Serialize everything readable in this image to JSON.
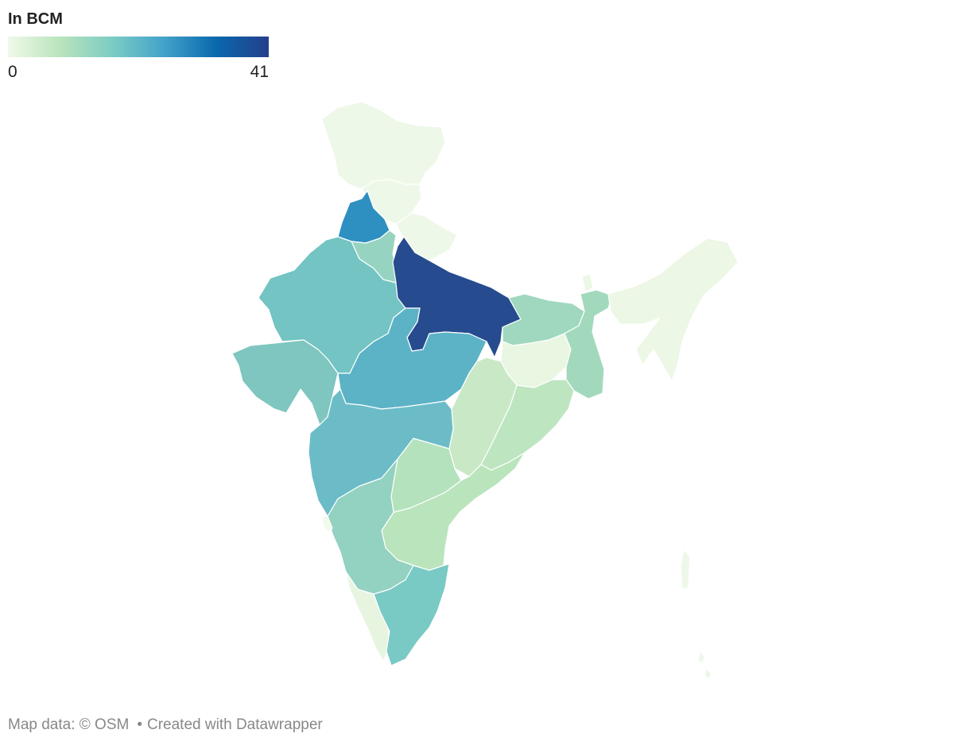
{
  "legend": {
    "title": "In BCM",
    "min_label": "0",
    "max_label": "41",
    "scale_colors": [
      "#f0f9e8",
      "#bae4bc",
      "#7bccc4",
      "#43a2ca",
      "#0868ac",
      "#253f8b"
    ]
  },
  "footer": {
    "map_data": "Map data: © OSM",
    "separator": "•",
    "credit": "Created with Datawrapper"
  },
  "map": {
    "scale": [
      0,
      41
    ],
    "regions": [
      {
        "id": "jammu-kashmir-ladakh",
        "fill": "#eef8e9"
      },
      {
        "id": "himachal-pradesh",
        "fill": "#eef8e9"
      },
      {
        "id": "uttarakhand",
        "fill": "#eef8e9"
      },
      {
        "id": "punjab",
        "fill": "#2e8fc1"
      },
      {
        "id": "haryana",
        "fill": "#97d3c1"
      },
      {
        "id": "rajasthan",
        "fill": "#73c4c3"
      },
      {
        "id": "uttar-pradesh",
        "fill": "#264b8e"
      },
      {
        "id": "gujarat",
        "fill": "#7ec6bf"
      },
      {
        "id": "madhya-pradesh",
        "fill": "#5cb3c6"
      },
      {
        "id": "bihar",
        "fill": "#9fd8be"
      },
      {
        "id": "jharkhand",
        "fill": "#e8f6e2"
      },
      {
        "id": "west-bengal",
        "fill": "#a2d9bd"
      },
      {
        "id": "chhattisgarh",
        "fill": "#c9e9c6"
      },
      {
        "id": "odisha",
        "fill": "#bde6c0"
      },
      {
        "id": "maharashtra",
        "fill": "#6cbcc8"
      },
      {
        "id": "telangana",
        "fill": "#b4e2bc"
      },
      {
        "id": "andhra-pradesh",
        "fill": "#bae4bc"
      },
      {
        "id": "karnataka",
        "fill": "#93d1c1"
      },
      {
        "id": "goa",
        "fill": "#f2faec"
      },
      {
        "id": "kerala",
        "fill": "#e7f5e0"
      },
      {
        "id": "tamil-nadu",
        "fill": "#79c9c4"
      },
      {
        "id": "northeast",
        "fill": "#ecf7e6"
      },
      {
        "id": "andaman-nicobar",
        "fill": "#eef8e9"
      }
    ]
  }
}
